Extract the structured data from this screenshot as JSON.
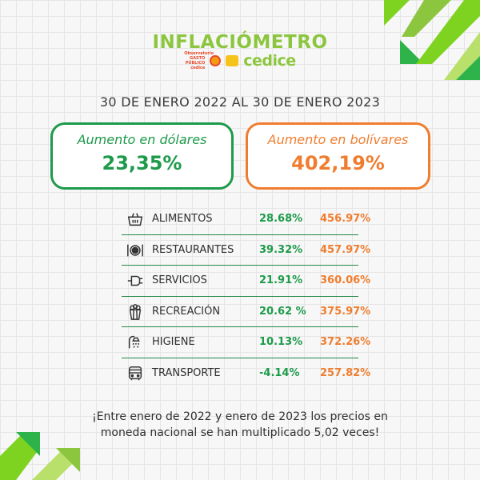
{
  "logo": {
    "title": "INFLACIÓMETRO",
    "brand": "cedice",
    "sponsor_text": "Observatorio GASTO PÚBLICO cedice"
  },
  "date_range": "30 DE ENERO 2022 AL 30 DE ENERO 2023",
  "cards": {
    "usd": {
      "label": "Aumento en dólares",
      "value": "23,35%"
    },
    "bs": {
      "label": "Aumento en bolívares",
      "value": "402,19%"
    }
  },
  "categories": [
    {
      "icon": "grocery-basket-icon",
      "name": "ALIMENTOS",
      "usd": "28.68%",
      "bs": "456.97%"
    },
    {
      "icon": "plate-cutlery-icon",
      "name": "RESTAURANTES",
      "usd": "39.32%",
      "bs": "457.97%"
    },
    {
      "icon": "power-plug-icon",
      "name": "SERVICIOS",
      "usd": "21.91%",
      "bs": "360.06%"
    },
    {
      "icon": "popcorn-icon",
      "name": "RECREACIÓN",
      "usd": "20.62 %",
      "bs": "375.97%"
    },
    {
      "icon": "shower-icon",
      "name": "HIGIENE",
      "usd": "10.13%",
      "bs": "372.26%"
    },
    {
      "icon": "bus-icon",
      "name": "TRANSPORTE",
      "usd": "-4.14%",
      "bs": "257.82%"
    }
  ],
  "footer": {
    "line1": "¡Entre enero de 2022 y enero de 2023 los precios en",
    "line2": "moneda nacional se han multiplicado 5,02 veces!"
  },
  "colors": {
    "green": "#1d9a4a",
    "orange": "#ef7d2f",
    "lime": "#8cc63f",
    "background": "#f7f7f7"
  }
}
